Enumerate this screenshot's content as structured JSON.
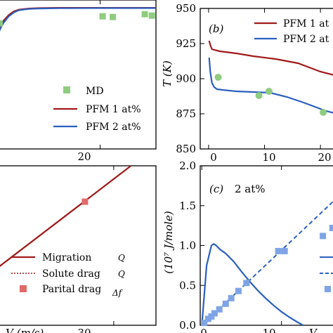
{
  "chart_data": [
    {
      "panel": "top-left",
      "type": "line",
      "xlim": [
        0,
        31
      ],
      "ylim": [
        0,
        1.05
      ],
      "x_ticks": [
        20
      ],
      "series": [
        {
          "name": "PFM 1 at%",
          "color": "#a01a1a",
          "style": "solid",
          "x": [
            0,
            0.5,
            1,
            2,
            3,
            4,
            6,
            8,
            12,
            20,
            31
          ],
          "y": [
            0.84,
            0.875,
            0.905,
            0.945,
            0.97,
            0.982,
            0.99,
            0.993,
            0.995,
            0.995,
            0.995
          ]
        },
        {
          "name": "PFM 2 at%",
          "color": "#2a5fbf",
          "style": "solid",
          "x": [
            0,
            0.5,
            1,
            2,
            3,
            4,
            6,
            8,
            12,
            20,
            31
          ],
          "y": [
            0.82,
            0.86,
            0.89,
            0.935,
            0.962,
            0.978,
            0.987,
            0.99,
            0.992,
            0.993,
            0.993
          ]
        },
        {
          "name": "MD",
          "color": "#8fcc80",
          "style": "square",
          "x": [
            0.2,
            20.5,
            22.5,
            28.8,
            30.2
          ],
          "y": [
            0.885,
            0.935,
            0.93,
            0.95,
            0.94
          ]
        }
      ],
      "legend": {
        "position": "bottom-right",
        "entries": [
          "MD",
          "PFM 1 at%",
          "PFM 2 at%"
        ]
      }
    },
    {
      "panel": "top-right",
      "type": "line",
      "title": "(b)",
      "xlabel": "",
      "ylabel": "T (K)",
      "xlim": [
        -1.5,
        23
      ],
      "ylim": [
        850,
        950
      ],
      "x_ticks": [
        0,
        10,
        20
      ],
      "x_tick_labels": [
        "0",
        "10",
        "20"
      ],
      "y_ticks": [
        850,
        875,
        900,
        925,
        950
      ],
      "y_tick_labels": [
        "850",
        "875",
        "900",
        "925",
        "950"
      ],
      "series": [
        {
          "name": "PFM 1 at%",
          "color": "#a01a1a",
          "style": "solid",
          "x": [
            0.1,
            0.3,
            0.6,
            1,
            2,
            5,
            8,
            12,
            16,
            20,
            23
          ],
          "y": [
            927,
            924,
            921,
            920.5,
            919.5,
            918,
            916,
            914,
            911,
            905,
            902
          ]
        },
        {
          "name": "PFM 2 at%",
          "color": "#2a5fbf",
          "style": "solid",
          "x": [
            0.1,
            0.3,
            0.6,
            1,
            1.5,
            2.5,
            5,
            8,
            11,
            14,
            17,
            19,
            21,
            23
          ],
          "y": [
            915,
            905,
            897,
            894,
            892.5,
            892,
            891,
            890.5,
            890,
            887,
            883,
            880,
            877,
            875
          ]
        },
        {
          "name": "",
          "color": "#8fcc80",
          "style": "circle",
          "x": [
            1.7,
            9,
            10.8,
            20.5
          ],
          "y": [
            901,
            888,
            891,
            876
          ]
        }
      ],
      "legend": {
        "position": "top-right",
        "entries": [
          "PFM 1 at",
          "PFM 2 at"
        ]
      }
    },
    {
      "panel": "bottom-left",
      "type": "line",
      "xlim": [
        0,
        41
      ],
      "ylim": [
        0,
        1
      ],
      "x_ticks": [
        30
      ],
      "x_tick_labels": [
        "30"
      ],
      "xlabel": "V (m/s)",
      "series": [
        {
          "name": "Migration",
          "color": "#a01a1a",
          "style": "solid",
          "x": [
            0,
            41
          ],
          "y": [
            0.365,
            1.12
          ]
        },
        {
          "name": "Partial drag",
          "color": "#e06a6a",
          "style": "square",
          "x": [
            22.5
          ],
          "y": [
            0.775
          ]
        }
      ],
      "legend": {
        "position": "bottom-right",
        "entries": [
          "Migration",
          "Solute drag",
          "Parital drag"
        ],
        "symbols": [
          "Q",
          "Q",
          "Δf"
        ]
      }
    },
    {
      "panel": "bottom-right",
      "type": "line",
      "title": "(c)",
      "annotation": "2 at%",
      "ylabel": "(10⁷ J/mole)",
      "xlabel": "V",
      "xlim": [
        -0.2,
        17
      ],
      "ylim": [
        0,
        2.0
      ],
      "x_ticks": [
        0,
        10
      ],
      "x_tick_labels": [
        "0",
        "10"
      ],
      "y_ticks": [
        0,
        0.5,
        1.0,
        1.5,
        2.0
      ],
      "y_tick_labels": [
        "0.0",
        "0.5",
        "1.0",
        "1.5",
        "2.0"
      ],
      "series": [
        {
          "name": "",
          "color": "#2a5fbf",
          "style": "solid",
          "x": [
            0,
            0.6,
            1.2,
            1.5,
            1.8,
            2.3,
            3,
            4,
            5,
            6,
            7,
            8,
            9,
            10,
            11,
            12,
            12.7
          ],
          "y": [
            0,
            0.75,
            1.0,
            1.02,
            1.0,
            0.95,
            0.9,
            0.8,
            0.67,
            0.55,
            0.44,
            0.34,
            0.25,
            0.17,
            0.1,
            0.04,
            0.0
          ]
        },
        {
          "name": "",
          "color": "#2a5fbf",
          "style": "dash",
          "x": [
            0,
            17
          ],
          "y": [
            0,
            1.6
          ]
        },
        {
          "name": "",
          "color": "#7fa4e6",
          "style": "square",
          "x": [
            0.3,
            0.8,
            1.2,
            1.6,
            2.2,
            3,
            3.7,
            4.6,
            5.6,
            9.6,
            10.4,
            15.2,
            16.4
          ],
          "y": [
            0.03,
            0.08,
            0.11,
            0.15,
            0.2,
            0.27,
            0.34,
            0.43,
            0.53,
            0.93,
            0.93,
            1.12,
            1.22
          ]
        }
      ]
    }
  ]
}
